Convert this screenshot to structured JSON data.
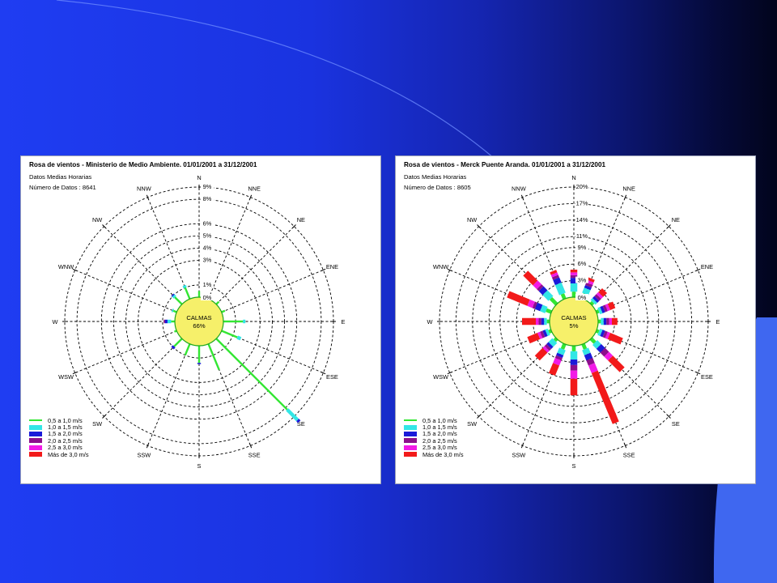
{
  "colors": {
    "sectorColors": [
      "#33e633",
      "#33e6e6",
      "#1a1ad9",
      "#8c0f8c",
      "#f21ae6",
      "#f21a1a"
    ],
    "calmFill": "#f6f06a",
    "calmStroke": "#1ea81e"
  },
  "chart_data": [
    {
      "type": "wind-rose",
      "title": "Rosa de vientos - Ministerio de Medio Ambiente. 01/01/2001 a 31/12/2001",
      "subtitle": "Datos Medias Horarias",
      "count_label": "Número de Datos : 8641",
      "calm_label": "CALMAS",
      "calm_value": "66%",
      "directions": [
        "N",
        "NNE",
        "NE",
        "ENE",
        "E",
        "ESE",
        "SE",
        "SSE",
        "S",
        "SSW",
        "SW",
        "WSW",
        "W",
        "WNW",
        "NW",
        "NNW"
      ],
      "ring_labels": [
        "0%",
        "1%",
        "3%",
        "4%",
        "5%",
        "6%",
        "8%",
        "9%"
      ],
      "ring_values": [
        0,
        1,
        3,
        4,
        5,
        6,
        8,
        9
      ],
      "legend": [
        "0,5 a 1,0 m/s",
        "1,0 a 1,5 m/s",
        "1,5 a 2,0 m/s",
        "2,0 a 2,5 m/s",
        "2,5 a 3,0 m/s",
        "Más de 3,0 m/s"
      ],
      "series": [
        {
          "name": "0,5 a 1,0 m/s",
          "values": [
            0.5,
            0.3,
            0.3,
            0.3,
            1.6,
            1.4,
            8.2,
            2.3,
            1.4,
            1.0,
            0.9,
            0.2,
            0.3,
            0.3,
            0.8,
            1.0
          ]
        },
        {
          "name": "1,0 a 1,5 m/s",
          "values": [
            0.0,
            0.0,
            0.0,
            0.0,
            0.2,
            0.3,
            1.2,
            0.0,
            0.0,
            0.0,
            0.0,
            0.0,
            0.3,
            0.1,
            0.2,
            0.2
          ]
        },
        {
          "name": "1,5 a 2,0 m/s",
          "values": [
            0.0,
            0.0,
            0.0,
            0.0,
            0.0,
            0.0,
            0.2,
            0.0,
            0.1,
            0.0,
            0.2,
            0.0,
            0.2,
            0.0,
            0.1,
            0.0
          ]
        },
        {
          "name": "2,0 a 2,5 m/s",
          "values": [
            0.0,
            0.0,
            0.0,
            0.0,
            0.0,
            0.0,
            0.0,
            0.0,
            0.0,
            0.0,
            0.0,
            0.0,
            0.1,
            0.0,
            0.0,
            0.0
          ]
        },
        {
          "name": "2,5 a 3,0 m/s",
          "values": [
            0,
            0,
            0,
            0,
            0,
            0,
            0,
            0,
            0,
            0,
            0,
            0,
            0,
            0,
            0,
            0
          ]
        },
        {
          "name": "Más de 3,0 m/s",
          "values": [
            0,
            0,
            0,
            0,
            0,
            0,
            0,
            0,
            0,
            0,
            0,
            0,
            0,
            0,
            0,
            0
          ]
        }
      ]
    },
    {
      "type": "wind-rose",
      "title": "Rosa de vientos - Merck Puente Aranda. 01/01/2001 a 31/12/2001",
      "subtitle": "Datos Medias Horarias",
      "count_label": "Número de Datos : 8605",
      "calm_label": "CALMAS",
      "calm_value": "5%",
      "directions": [
        "N",
        "NNE",
        "NE",
        "ENE",
        "E",
        "ESE",
        "SE",
        "SSE",
        "S",
        "SSW",
        "SW",
        "WSW",
        "W",
        "WNW",
        "NW",
        "NNW"
      ],
      "ring_labels": [
        "0%",
        "3%",
        "6%",
        "9%",
        "11%",
        "14%",
        "17%",
        "20%"
      ],
      "ring_values": [
        0,
        3,
        6,
        9,
        11,
        14,
        17,
        20
      ],
      "legend": [
        "0,5 a 1,0 m/s",
        "1,0 a 1,5 m/s",
        "1,5 a 2,0 m/s",
        "2,0 a 2,5 m/s",
        "2,5 a 3,0 m/s",
        "Más de 3,0 m/s"
      ],
      "series": [
        {
          "name": "0,5 a 1,0 m/s",
          "values": [
            1.0,
            1.0,
            0.5,
            0.5,
            0.5,
            0.5,
            1.0,
            1.0,
            1.0,
            1.0,
            0.5,
            0.5,
            0.5,
            1.0,
            1.5,
            1.0
          ]
        },
        {
          "name": "1,0 a 1,5 m/s",
          "values": [
            1.5,
            1.0,
            0.5,
            0.5,
            0.5,
            0.5,
            1.0,
            1.0,
            1.5,
            1.0,
            1.0,
            0.5,
            0.5,
            1.0,
            1.5,
            2.0
          ]
        },
        {
          "name": "1,5 a 2,0 m/s",
          "values": [
            1.0,
            0.5,
            0.5,
            0.5,
            0.5,
            0.5,
            1.0,
            1.0,
            1.0,
            0.5,
            0.5,
            0.5,
            0.5,
            1.0,
            1.0,
            1.0
          ]
        },
        {
          "name": "2,0 a 2,5 m/s",
          "values": [
            0.5,
            0.5,
            0.5,
            0.5,
            0.5,
            0.5,
            1.0,
            1.0,
            1.0,
            0.5,
            0.5,
            0.5,
            0.5,
            0.5,
            0.5,
            0.5
          ]
        },
        {
          "name": "2,5 a 3,0 m/s",
          "values": [
            0.5,
            0.5,
            0.5,
            0.5,
            0.5,
            0.5,
            1.0,
            1.5,
            1.5,
            1.0,
            0.5,
            0.5,
            0.5,
            1.0,
            1.0,
            0.5
          ]
        },
        {
          "name": "Más de 3,0 m/s",
          "values": [
            0.5,
            0.5,
            1.0,
            1.0,
            1.0,
            2.5,
            3.0,
            10.0,
            3.0,
            2.0,
            2.0,
            2.0,
            2.5,
            4.0,
            2.5,
            0.5
          ]
        }
      ]
    }
  ]
}
